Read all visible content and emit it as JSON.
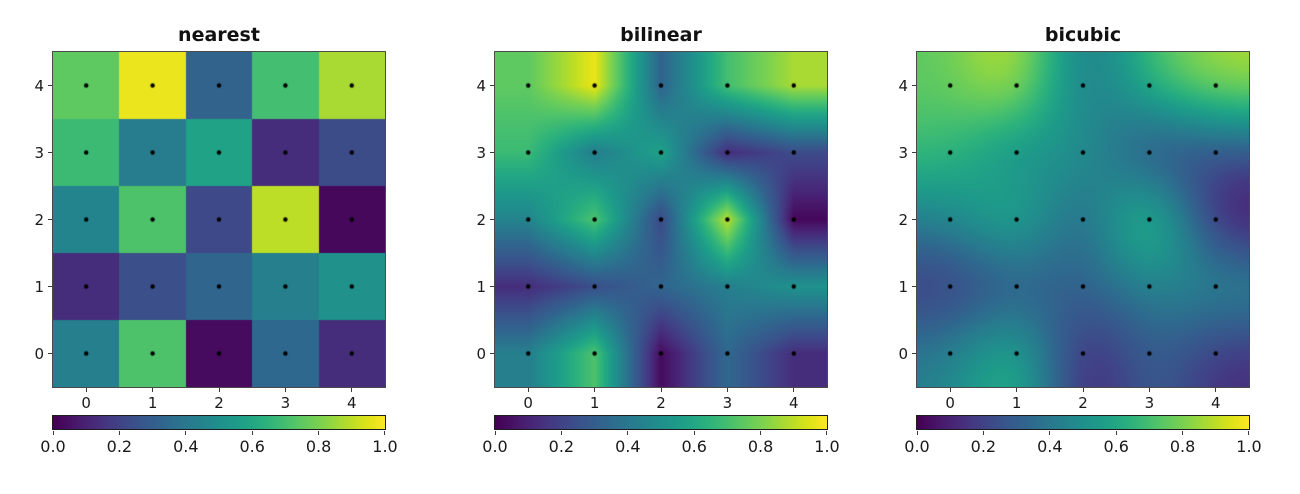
{
  "figure": {
    "background_color": "#ffffff",
    "frame_color": "#4a4a4a",
    "text_color": "#1a1a1a"
  },
  "chart_data": {
    "type": "heatmap",
    "colormap": "viridis",
    "vmin": 0.0,
    "vmax": 1.0,
    "panels": [
      {
        "title": "nearest",
        "interpolation": "nearest"
      },
      {
        "title": "bilinear",
        "interpolation": "bilinear"
      },
      {
        "title": "bicubic",
        "interpolation": "bicubic"
      }
    ],
    "values_rows_top_to_bottom": [
      [
        0.75,
        0.97,
        0.32,
        0.7,
        0.87
      ],
      [
        0.68,
        0.42,
        0.58,
        0.13,
        0.23
      ],
      [
        0.45,
        0.72,
        0.22,
        0.9,
        0.02
      ],
      [
        0.13,
        0.24,
        0.33,
        0.43,
        0.51
      ],
      [
        0.43,
        0.72,
        0.03,
        0.34,
        0.13
      ]
    ],
    "x_tick_labels": [
      "0",
      "1",
      "2",
      "3",
      "4"
    ],
    "y_tick_labels_top_to_bottom": [
      "4",
      "3",
      "2",
      "1",
      "0"
    ],
    "colorbar_tick_labels": [
      "0.0",
      "0.2",
      "0.4",
      "0.6",
      "0.8",
      "1.0"
    ],
    "marker_color": "#000000",
    "markers": "black dot at each of the 25 grid cell centers",
    "axis_range": [
      -0.5,
      4.5
    ],
    "grid_on": false,
    "legend": "none",
    "colorbar_position": "below each panel, horizontal"
  }
}
